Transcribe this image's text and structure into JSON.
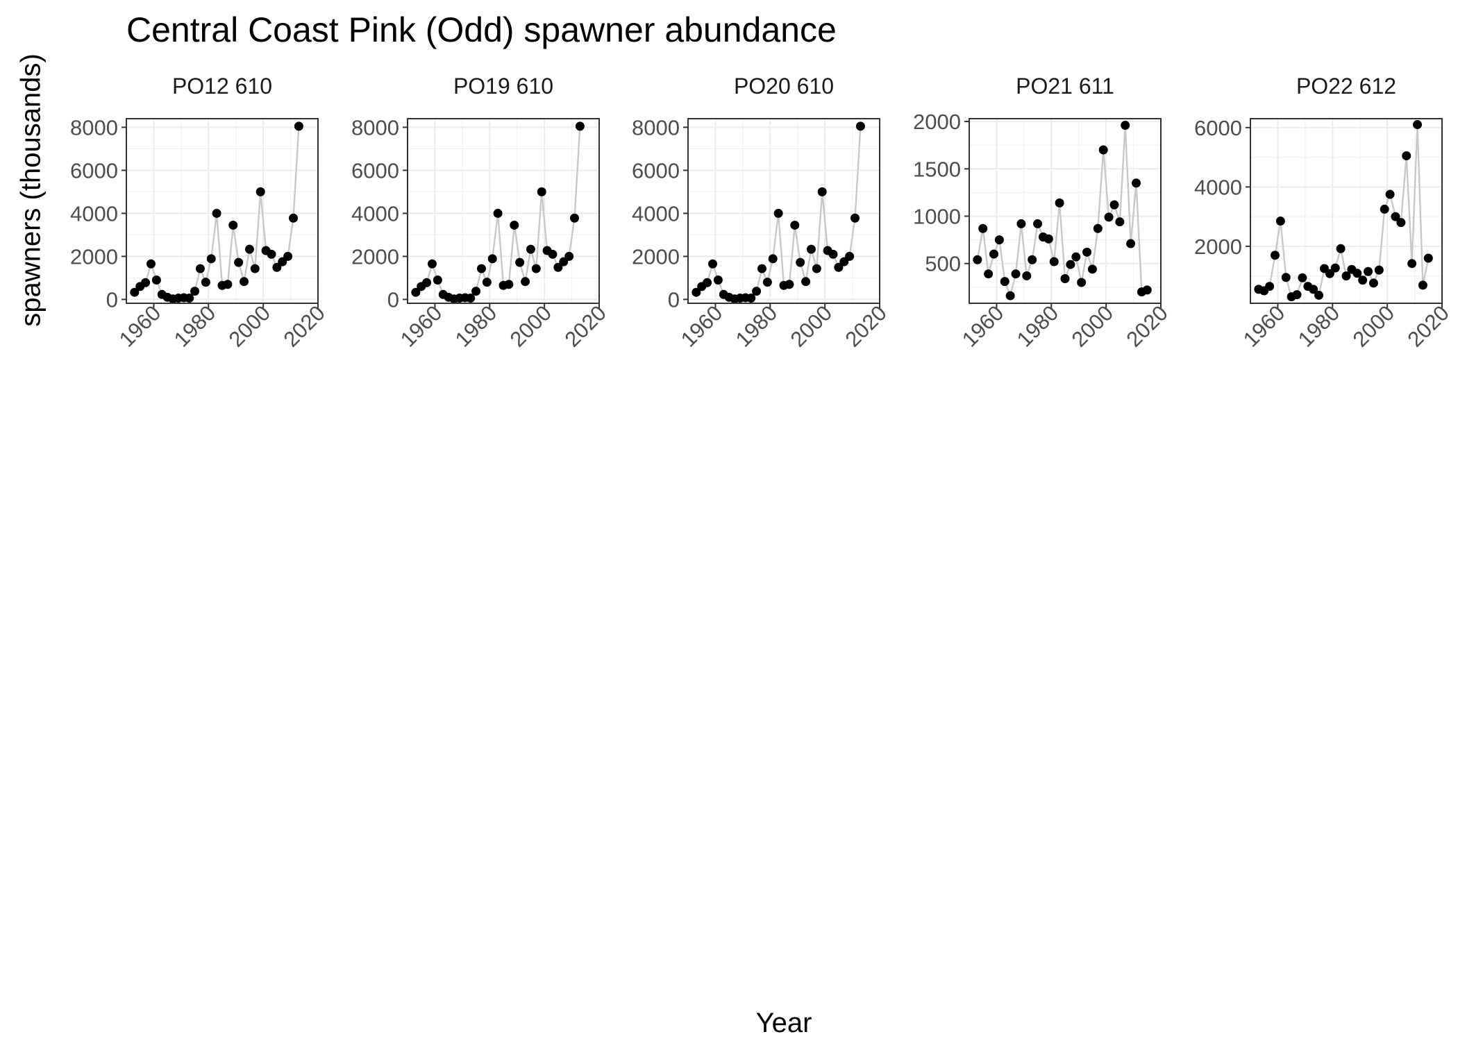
{
  "chart_data": {
    "type": "line",
    "title": "Central Coast Pink (Odd) spawner abundance",
    "xlabel": "Year",
    "ylabel": "spawners (thousands)",
    "x_ticks": [
      1960,
      1980,
      2000,
      2020
    ],
    "xlim": [
      1950,
      2020
    ],
    "grid": true,
    "line_color": "#c8c8c8",
    "point_color": "#000000",
    "panels": [
      {
        "name": "PO12 610",
        "ylim": [
          -180,
          8400
        ],
        "y_ticks": [
          0,
          2000,
          4000,
          6000,
          8000
        ],
        "x": [
          1953,
          1955,
          1957,
          1959,
          1961,
          1963,
          1965,
          1967,
          1969,
          1971,
          1973,
          1975,
          1977,
          1979,
          1981,
          1983,
          1985,
          1987,
          1989,
          1991,
          1993,
          1995,
          1997,
          1999,
          2001,
          2003,
          2005,
          2007,
          2009,
          2011,
          2013,
          2015
        ],
        "y": [
          330,
          600,
          780,
          1650,
          900,
          230,
          100,
          20,
          60,
          80,
          60,
          380,
          1430,
          800,
          1890,
          4000,
          650,
          700,
          3450,
          1720,
          830,
          2330,
          1430,
          5000,
          2270,
          2100,
          1490,
          1750,
          2000,
          3780,
          8050,
          null
        ]
      },
      {
        "name": "PO19 610",
        "ylim": [
          -180,
          8400
        ],
        "y_ticks": [
          0,
          2000,
          4000,
          6000,
          8000
        ],
        "x": [
          1953,
          1955,
          1957,
          1959,
          1961,
          1963,
          1965,
          1967,
          1969,
          1971,
          1973,
          1975,
          1977,
          1979,
          1981,
          1983,
          1985,
          1987,
          1989,
          1991,
          1993,
          1995,
          1997,
          1999,
          2001,
          2003,
          2005,
          2007,
          2009,
          2011,
          2013,
          2015
        ],
        "y": [
          330,
          600,
          780,
          1650,
          900,
          230,
          100,
          20,
          60,
          80,
          60,
          380,
          1430,
          800,
          1890,
          4000,
          650,
          700,
          3450,
          1720,
          830,
          2330,
          1430,
          5000,
          2270,
          2100,
          1490,
          1750,
          2000,
          3780,
          8050,
          null
        ]
      },
      {
        "name": "PO20 610",
        "ylim": [
          -180,
          8400
        ],
        "y_ticks": [
          0,
          2000,
          4000,
          6000,
          8000
        ],
        "x": [
          1953,
          1955,
          1957,
          1959,
          1961,
          1963,
          1965,
          1967,
          1969,
          1971,
          1973,
          1975,
          1977,
          1979,
          1981,
          1983,
          1985,
          1987,
          1989,
          1991,
          1993,
          1995,
          1997,
          1999,
          2001,
          2003,
          2005,
          2007,
          2009,
          2011,
          2013,
          2015
        ],
        "y": [
          330,
          600,
          780,
          1650,
          900,
          230,
          100,
          20,
          60,
          80,
          60,
          380,
          1430,
          800,
          1890,
          4000,
          650,
          700,
          3450,
          1720,
          830,
          2330,
          1430,
          5000,
          2270,
          2100,
          1490,
          1750,
          2000,
          3780,
          8050,
          null
        ]
      },
      {
        "name": "PO21 611",
        "ylim": [
          80,
          2030
        ],
        "y_ticks": [
          500,
          1000,
          1500,
          2000
        ],
        "x": [
          1953,
          1955,
          1957,
          1959,
          1961,
          1963,
          1965,
          1967,
          1969,
          1971,
          1973,
          1975,
          1977,
          1979,
          1981,
          1983,
          1985,
          1987,
          1989,
          1991,
          1993,
          1995,
          1997,
          1999,
          2001,
          2003,
          2005,
          2007,
          2009,
          2011,
          2013,
          2015
        ],
        "y": [
          540,
          870,
          390,
          600,
          750,
          310,
          160,
          390,
          920,
          370,
          540,
          920,
          780,
          760,
          520,
          1140,
          340,
          490,
          570,
          300,
          620,
          440,
          870,
          1700,
          990,
          1120,
          940,
          1960,
          710,
          1350,
          200,
          220
        ]
      },
      {
        "name": "PO22 612",
        "ylim": [
          80,
          6300
        ],
        "y_ticks": [
          2000,
          4000,
          6000
        ],
        "x": [
          1953,
          1955,
          1957,
          1959,
          1961,
          1963,
          1965,
          1967,
          1969,
          1971,
          1973,
          1975,
          1977,
          1979,
          1981,
          1983,
          1985,
          1987,
          1989,
          1991,
          1993,
          1995,
          1997,
          1999,
          2001,
          2003,
          2005,
          2007,
          2009,
          2011,
          2013,
          2015
        ],
        "y": [
          550,
          500,
          650,
          1700,
          2850,
          950,
          300,
          370,
          940,
          650,
          550,
          350,
          1250,
          1080,
          1270,
          1920,
          1000,
          1220,
          1090,
          860,
          1150,
          760,
          1200,
          3250,
          3750,
          3000,
          2800,
          5050,
          1420,
          6100,
          690,
          1600
        ]
      }
    ]
  }
}
